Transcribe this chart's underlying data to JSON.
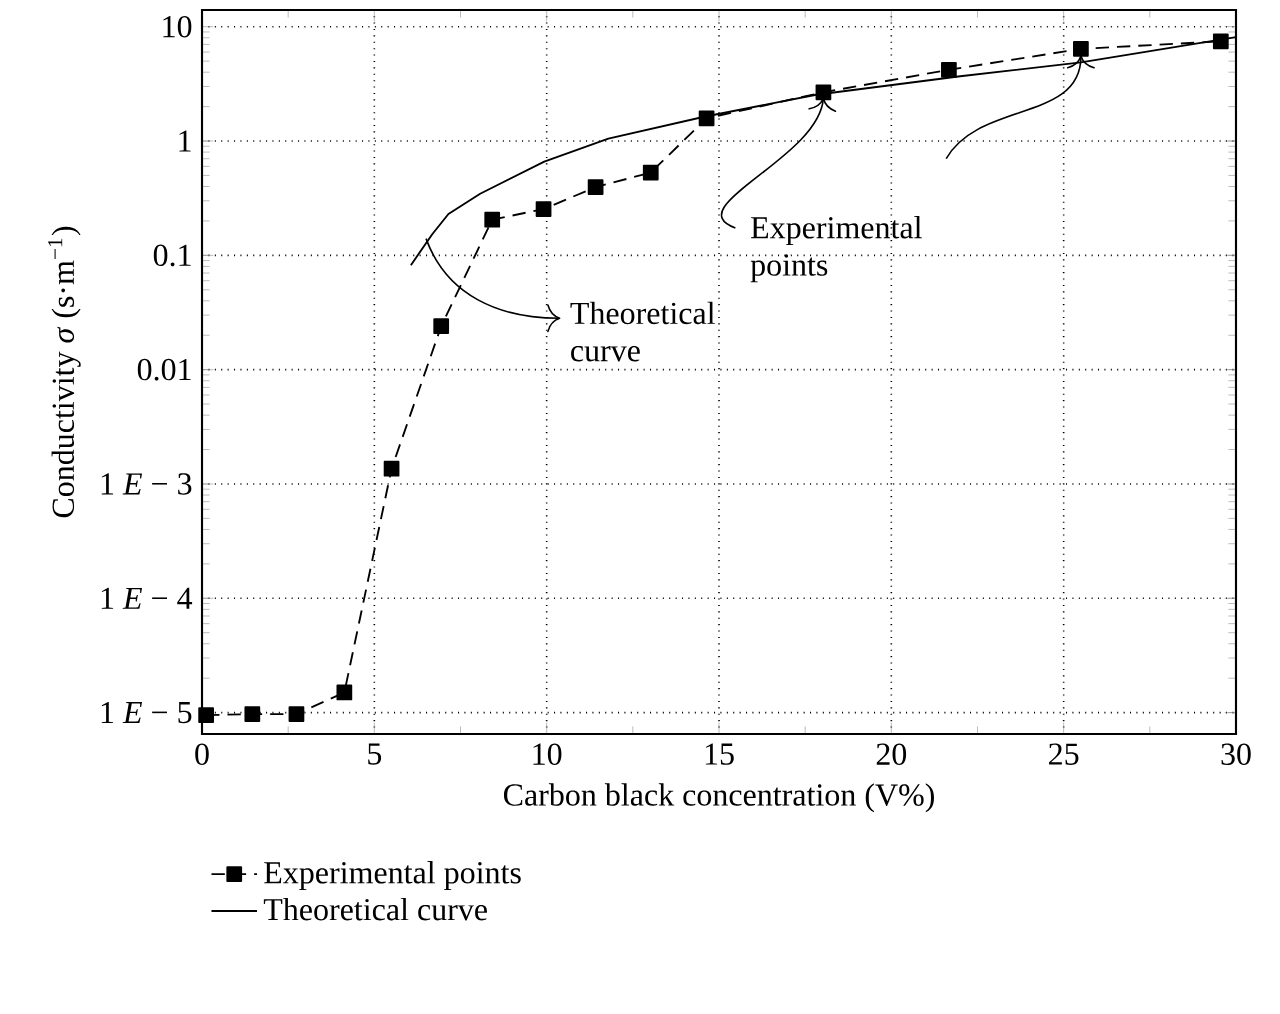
{
  "chart_data": {
    "type": "line",
    "xlabel": "Carbon black concentration  (V%)",
    "ylabel": "Conductivity *σ* (s·m$^{−1}$)",
    "log": "y",
    "grid": true,
    "legend": "bottom",
    "xlim": [
      0,
      30
    ],
    "ylim": [
      6.5e-06,
      14
    ],
    "xticks": [
      0,
      5,
      10,
      15,
      20,
      25,
      30
    ],
    "yticks": [
      {
        "value": 1e-05,
        "label": "1 *E* − 5"
      },
      {
        "value": 0.0001,
        "label": "1 *E* − 4"
      },
      {
        "value": 0.001,
        "label": "1 *E* − 3"
      },
      0.01,
      0.1,
      1,
      10
    ],
    "series": [
      {
        "name": "Experimental points",
        "color": "#000000",
        "marker": "square",
        "line_style": "dashed",
        "x": [
          0.12,
          1.46,
          2.74,
          4.13,
          5.5,
          6.94,
          8.42,
          9.91,
          11.42,
          13.02,
          14.64,
          18.03,
          21.67,
          25.5,
          29.56
        ],
        "values": [
          9.5e-06,
          9.7e-06,
          9.7e-06,
          1.5e-05,
          0.00136,
          0.024,
          0.205,
          0.254,
          0.395,
          0.53,
          1.58,
          2.67,
          4.2,
          6.4,
          7.45
        ]
      },
      {
        "name": "Theoretical curve",
        "color": "#000000",
        "marker": "none",
        "line_style": "solid",
        "x": [
          6.06,
          6.68,
          7.15,
          8.07,
          9.93,
          11.79,
          14.57,
          17.82,
          22.0,
          25.5,
          30
        ],
        "values": [
          0.082,
          0.153,
          0.23,
          0.346,
          0.66,
          1.05,
          1.63,
          2.54,
          3.69,
          4.87,
          8.1
        ]
      }
    ],
    "annotations": [
      {
        "text": "Theoretical curve",
        "x": 6.5,
        "y": 0.14
      },
      {
        "text": "Experimental points",
        "x": 18.03,
        "y": 2.67
      }
    ]
  }
}
